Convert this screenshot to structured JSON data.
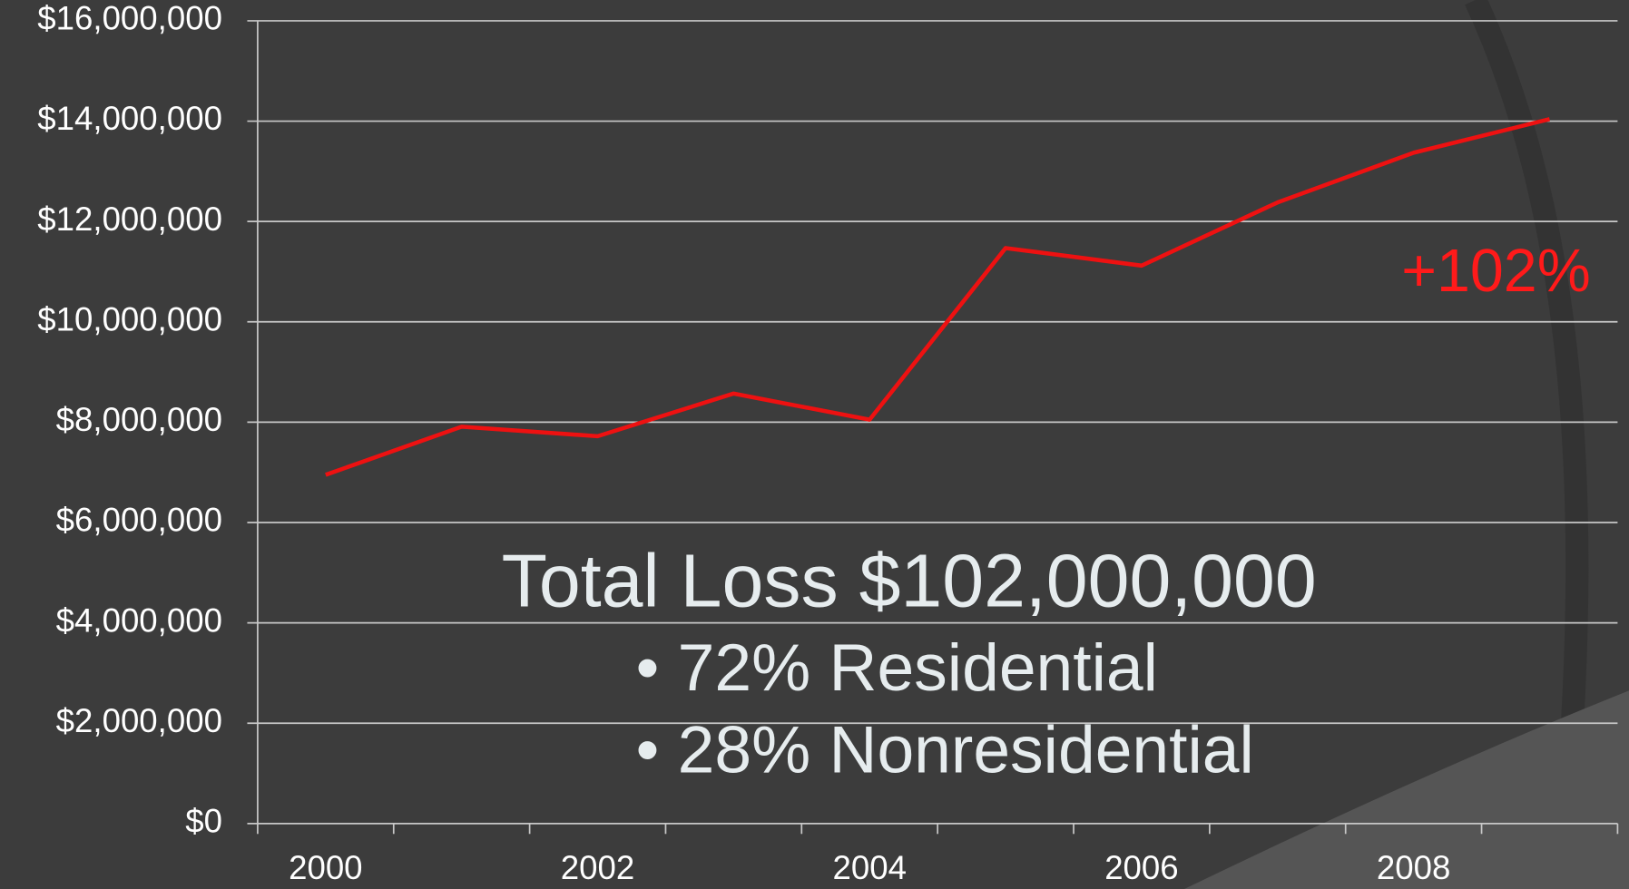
{
  "chart_data": {
    "type": "line",
    "categories": [
      "2000",
      null,
      "2002",
      null,
      "2004",
      null,
      "2006",
      null,
      "2008",
      null
    ],
    "values": [
      6950000,
      7910000,
      7720000,
      8570000,
      8050000,
      11470000,
      11120000,
      12380000,
      13370000,
      14040000
    ],
    "color": "#ee1111",
    "ylim": [
      0,
      16000000
    ],
    "yticks": [
      {
        "value": 0,
        "label": "$0"
      },
      {
        "value": 2000000,
        "label": "$2,000,000"
      },
      {
        "value": 4000000,
        "label": "$4,000,000"
      },
      {
        "value": 6000000,
        "label": "$6,000,000"
      },
      {
        "value": 8000000,
        "label": "$8,000,000"
      },
      {
        "value": 10000000,
        "label": "$10,000,000"
      },
      {
        "value": 12000000,
        "label": "$12,000,000"
      },
      {
        "value": 14000000,
        "label": "$14,000,000"
      },
      {
        "value": 16000000,
        "label": "$16,000,000"
      }
    ],
    "grid": true,
    "annotations": [
      "+102%",
      "Total Loss $102,000,000",
      "• 72% Residential",
      "• 28% Nonresidential"
    ]
  }
}
